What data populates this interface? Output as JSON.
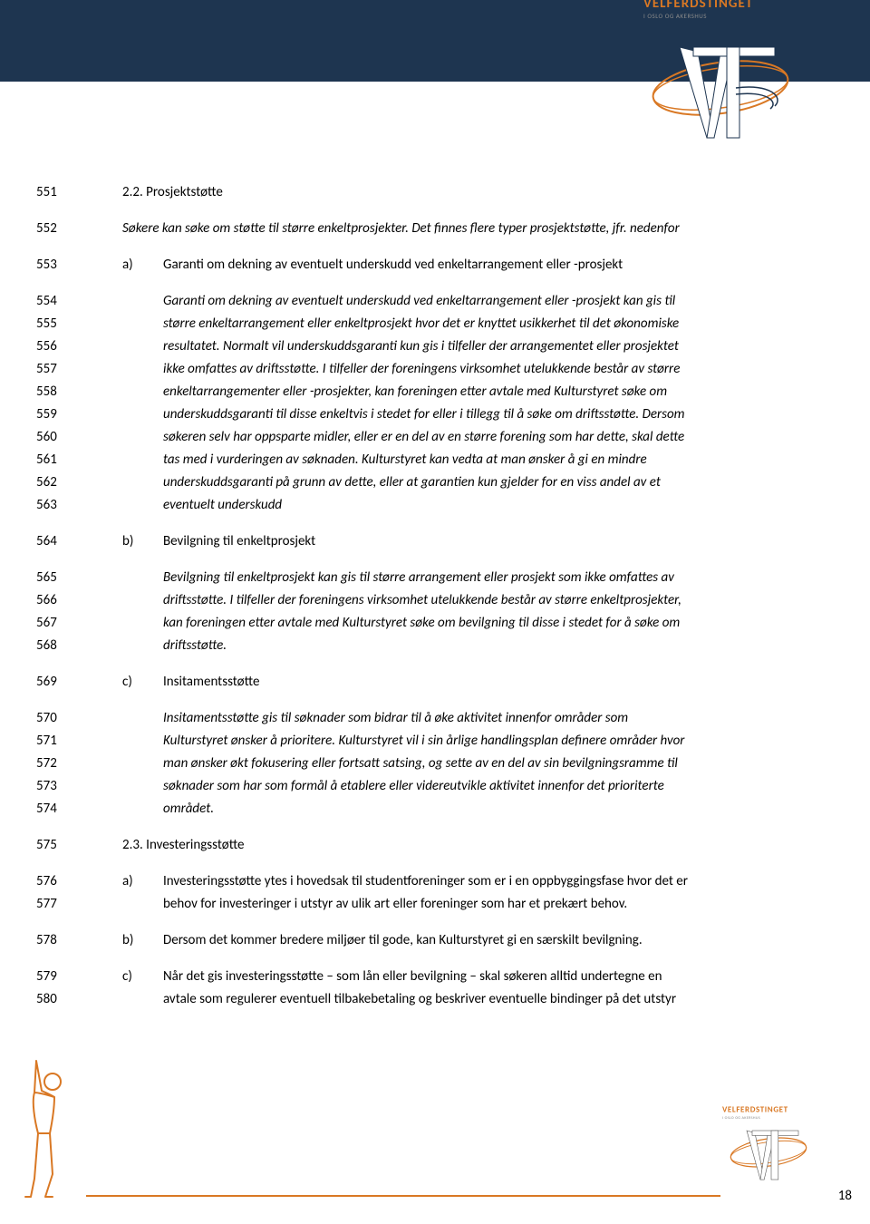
{
  "colors": {
    "header_bg": "#1e3550",
    "accent": "#d97824",
    "text": "#1a1a1a",
    "logo_sub": "#8a8a8a",
    "white": "#ffffff"
  },
  "logo": {
    "title": "VELFERDSTINGET",
    "subtitle": "I OSLO OG AKERSHUS"
  },
  "page_number": "18",
  "lines": [
    {
      "n": "551",
      "type": "h",
      "text": "2.2. Prosjektstøtte"
    },
    {
      "type": "gap"
    },
    {
      "n": "552",
      "type": "p1i",
      "text": "Søkere kan søke om støtte til større enkeltprosjekter. Det finnes flere typer prosjektstøtte, jfr. nedenfor"
    },
    {
      "type": "gap"
    },
    {
      "n": "553",
      "type": "li",
      "marker": "a)",
      "text": "Garanti om dekning av eventuelt underskudd ved enkeltarrangement eller -prosjekt"
    },
    {
      "type": "gap"
    },
    {
      "n": "554",
      "type": "p2i",
      "text": "Garanti om dekning av eventuelt underskudd ved enkeltarrangement eller -prosjekt kan gis til"
    },
    {
      "n": "555",
      "type": "p2i",
      "text": "større enkeltarrangement eller enkeltprosjekt hvor det er knyttet usikkerhet til det økonomiske"
    },
    {
      "n": "556",
      "type": "p2i",
      "text": "resultatet. Normalt vil underskuddsgaranti kun gis i tilfeller der arrangementet eller prosjektet"
    },
    {
      "n": "557",
      "type": "p2i",
      "text": "ikke omfattes av driftsstøtte. I tilfeller der foreningens virksomhet utelukkende består av større"
    },
    {
      "n": "558",
      "type": "p2i",
      "text": "enkeltarrangementer eller -prosjekter, kan foreningen etter avtale med Kulturstyret søke om"
    },
    {
      "n": "559",
      "type": "p2i",
      "text": "underskuddsgaranti til disse enkeltvis i stedet for eller i tillegg til å søke om driftsstøtte. Dersom"
    },
    {
      "n": "560",
      "type": "p2i",
      "text": "søkeren selv har oppsparte midler, eller er en del av en større forening som har dette, skal dette"
    },
    {
      "n": "561",
      "type": "p2i",
      "text": "tas med i vurderingen av søknaden. Kulturstyret kan vedta at man ønsker å gi en mindre"
    },
    {
      "n": "562",
      "type": "p2i",
      "text": "underskuddsgaranti på grunn av dette, eller at garantien kun gjelder for en viss andel av et"
    },
    {
      "n": "563",
      "type": "p2i",
      "text": "eventuelt underskudd"
    },
    {
      "type": "gap"
    },
    {
      "n": "564",
      "type": "li",
      "marker": "b)",
      "text": "Bevilgning til enkeltprosjekt"
    },
    {
      "type": "gap"
    },
    {
      "n": "565",
      "type": "p2i",
      "text": "Bevilgning til enkeltprosjekt kan gis til større arrangement eller prosjekt som ikke omfattes av"
    },
    {
      "n": "566",
      "type": "p2i",
      "text": "driftsstøtte. I tilfeller der foreningens virksomhet utelukkende består av større enkeltprosjekter,"
    },
    {
      "n": "567",
      "type": "p2i",
      "text": "kan foreningen etter avtale med Kulturstyret søke om bevilgning til disse i stedet for å søke om"
    },
    {
      "n": "568",
      "type": "p2i",
      "text": "driftsstøtte."
    },
    {
      "type": "gap"
    },
    {
      "n": "569",
      "type": "li",
      "marker": "c)",
      "text": "Insitamentsstøtte"
    },
    {
      "type": "gap"
    },
    {
      "n": "570",
      "type": "p2i",
      "text": "Insitamentsstøtte gis til søknader som bidrar til å øke aktivitet innenfor områder som"
    },
    {
      "n": "571",
      "type": "p2i",
      "text": "Kulturstyret ønsker å prioritere. Kulturstyret vil i sin årlige handlingsplan definere områder hvor"
    },
    {
      "n": "572",
      "type": "p2i",
      "text": "man ønsker økt fokusering eller fortsatt satsing, og sette av en del av sin bevilgningsramme til"
    },
    {
      "n": "573",
      "type": "p2i",
      "text": "søknader som har som formål å etablere eller videreutvikle aktivitet innenfor det prioriterte"
    },
    {
      "n": "574",
      "type": "p2i",
      "text": "området."
    },
    {
      "type": "gap"
    },
    {
      "n": "575",
      "type": "h",
      "text": "2.3. Investeringsstøtte"
    },
    {
      "type": "gap"
    },
    {
      "n": "576",
      "type": "li",
      "marker": "a)",
      "text": "Investeringsstøtte ytes i hovedsak til studentforeninger som er i en oppbyggingsfase hvor det er"
    },
    {
      "n": "577",
      "type": "p2",
      "text": "behov for investeringer i utstyr av ulik art eller foreninger som har et prekært behov."
    },
    {
      "type": "gap"
    },
    {
      "n": "578",
      "type": "li",
      "marker": "b)",
      "text": "Dersom det kommer bredere miljøer til gode, kan Kulturstyret gi en særskilt bevilgning."
    },
    {
      "type": "gap"
    },
    {
      "n": "579",
      "type": "li",
      "marker": "c)",
      "text": "Når det gis investeringsstøtte – som lån eller bevilgning – skal søkeren alltid undertegne en"
    },
    {
      "n": "580",
      "type": "p2",
      "text": "avtale som regulerer eventuell tilbakebetaling og beskriver eventuelle bindinger på det utstyr"
    }
  ]
}
